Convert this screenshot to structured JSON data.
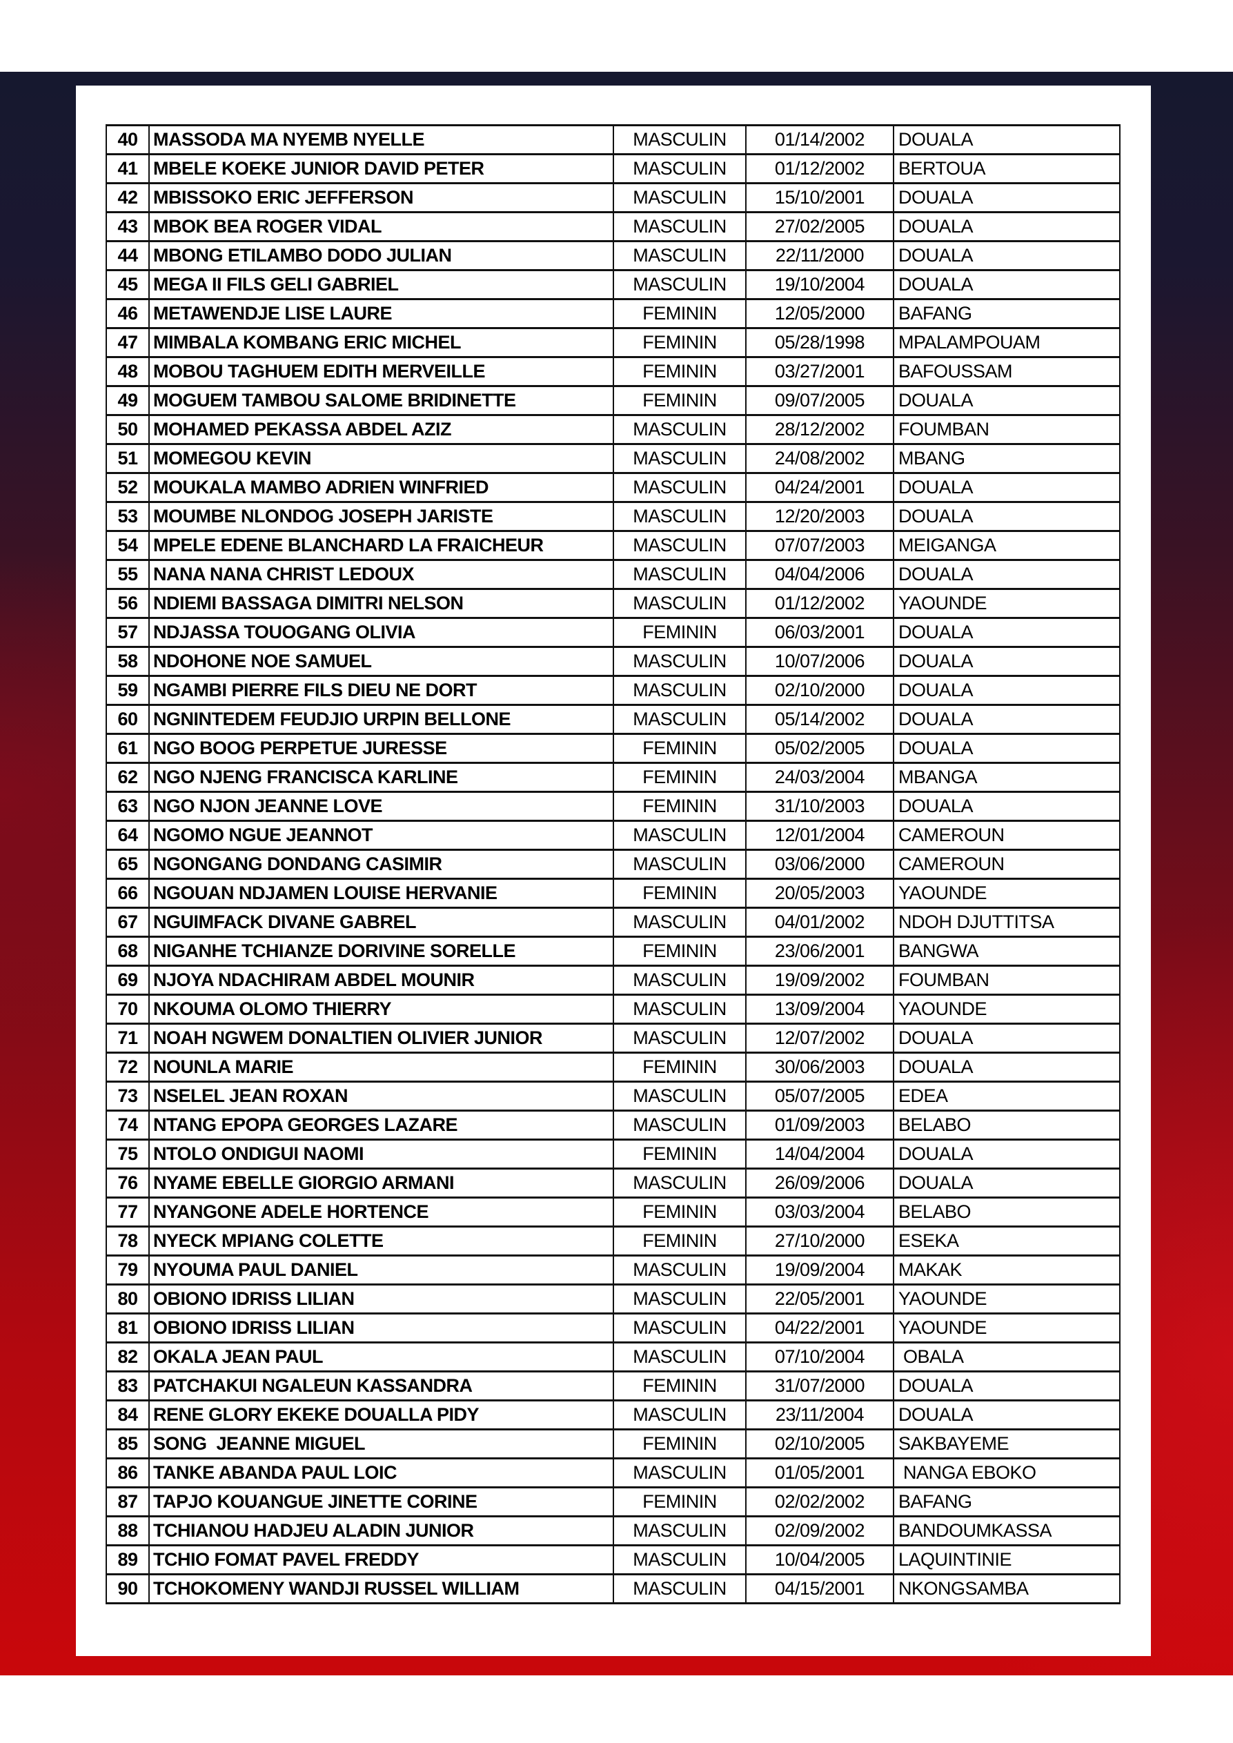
{
  "colors": {
    "background_top": "#16182f",
    "background_bottom": "#c9070b",
    "card": "#ffffff",
    "grid": "#111111"
  },
  "rows": [
    [
      "40",
      "MASSODA MA NYEMB NYELLE",
      "MASCULIN",
      "01/14/2002",
      "DOUALA"
    ],
    [
      "41",
      "MBELE KOEKE JUNIOR DAVID PETER",
      "MASCULIN",
      "01/12/2002",
      "BERTOUA"
    ],
    [
      "42",
      "MBISSOKO ERIC JEFFERSON",
      "MASCULIN",
      "15/10/2001",
      "DOUALA"
    ],
    [
      "43",
      "MBOK BEA ROGER VIDAL",
      "MASCULIN",
      "27/02/2005",
      "DOUALA"
    ],
    [
      "44",
      "MBONG ETILAMBO DODO JULIAN",
      "MASCULIN",
      "22/11/2000",
      "DOUALA"
    ],
    [
      "45",
      "MEGA II FILS GELI GABRIEL",
      "MASCULIN",
      "19/10/2004",
      "DOUALA"
    ],
    [
      "46",
      "METAWENDJE LISE LAURE",
      "FEMININ",
      "12/05/2000",
      "BAFANG"
    ],
    [
      "47",
      "MIMBALA KOMBANG ERIC MICHEL",
      "FEMININ",
      "05/28/1998",
      "MPALAMPOUAM"
    ],
    [
      "48",
      "MOBOU TAGHUEM EDITH MERVEILLE",
      "FEMININ",
      "03/27/2001",
      "BAFOUSSAM"
    ],
    [
      "49",
      "MOGUEM TAMBOU SALOME BRIDINETTE",
      "FEMININ",
      "09/07/2005",
      "DOUALA"
    ],
    [
      "50",
      "MOHAMED PEKASSA ABDEL AZIZ",
      "MASCULIN",
      "28/12/2002",
      "FOUMBAN"
    ],
    [
      "51",
      "MOMEGOU KEVIN",
      "MASCULIN",
      "24/08/2002",
      "MBANG"
    ],
    [
      "52",
      "MOUKALA MAMBO ADRIEN WINFRIED",
      "MASCULIN",
      "04/24/2001",
      "DOUALA"
    ],
    [
      "53",
      "MOUMBE NLONDOG JOSEPH JARISTE",
      "MASCULIN",
      "12/20/2003",
      "DOUALA"
    ],
    [
      "54",
      "MPELE EDENE BLANCHARD LA FRAICHEUR",
      "MASCULIN",
      "07/07/2003",
      "MEIGANGA"
    ],
    [
      "55",
      "NANA NANA CHRIST LEDOUX",
      "MASCULIN",
      "04/04/2006",
      "DOUALA"
    ],
    [
      "56",
      "NDIEMI BASSAGA DIMITRI NELSON",
      "MASCULIN",
      "01/12/2002",
      "YAOUNDE"
    ],
    [
      "57",
      "NDJASSA TOUOGANG OLIVIA",
      "FEMININ",
      "06/03/2001",
      "DOUALA"
    ],
    [
      "58",
      "NDOHONE NOE SAMUEL",
      "MASCULIN",
      "10/07/2006",
      "DOUALA"
    ],
    [
      "59",
      "NGAMBI PIERRE FILS DIEU NE DORT",
      "MASCULIN",
      "02/10/2000",
      "DOUALA"
    ],
    [
      "60",
      "NGNINTEDEM FEUDJIO URPIN BELLONE",
      "MASCULIN",
      "05/14/2002",
      "DOUALA"
    ],
    [
      "61",
      "NGO BOOG PERPETUE JURESSE",
      "FEMININ",
      "05/02/2005",
      "DOUALA"
    ],
    [
      "62",
      "NGO NJENG FRANCISCA KARLINE",
      "FEMININ",
      "24/03/2004",
      "MBANGA"
    ],
    [
      "63",
      "NGO NJON JEANNE LOVE",
      "FEMININ",
      "31/10/2003",
      "DOUALA"
    ],
    [
      "64",
      "NGOMO NGUE JEANNOT",
      "MASCULIN",
      "12/01/2004",
      "CAMEROUN"
    ],
    [
      "65",
      "NGONGANG DONDANG CASIMIR",
      "MASCULIN",
      "03/06/2000",
      "CAMEROUN"
    ],
    [
      "66",
      "NGOUAN NDJAMEN LOUISE HERVANIE",
      "FEMININ",
      "20/05/2003",
      "YAOUNDE"
    ],
    [
      "67",
      "NGUIMFACK DIVANE GABREL",
      "MASCULIN",
      "04/01/2002",
      "NDOH DJUTTITSA"
    ],
    [
      "68",
      "NIGANHE TCHIANZE DORIVINE SORELLE",
      "FEMININ",
      "23/06/2001",
      "BANGWA"
    ],
    [
      "69",
      "NJOYA NDACHIRAM ABDEL MOUNIR",
      "MASCULIN",
      "19/09/2002",
      "FOUMBAN"
    ],
    [
      "70",
      "NKOUMA OLOMO THIERRY",
      "MASCULIN",
      "13/09/2004",
      "YAOUNDE"
    ],
    [
      "71",
      "NOAH NGWEM DONALTIEN OLIVIER JUNIOR",
      "MASCULIN",
      "12/07/2002",
      "DOUALA"
    ],
    [
      "72",
      "NOUNLA MARIE",
      "FEMININ",
      "30/06/2003",
      "DOUALA"
    ],
    [
      "73",
      "NSELEL JEAN ROXAN",
      "MASCULIN",
      "05/07/2005",
      "EDEA"
    ],
    [
      "74",
      "NTANG EPOPA GEORGES LAZARE",
      "MASCULIN",
      "01/09/2003",
      "BELABO"
    ],
    [
      "75",
      "NTOLO ONDIGUI NAOMI",
      "FEMININ",
      "14/04/2004",
      "DOUALA"
    ],
    [
      "76",
      "NYAME EBELLE GIORGIO ARMANI",
      "MASCULIN",
      "26/09/2006",
      "DOUALA"
    ],
    [
      "77",
      "NYANGONE ADELE HORTENCE",
      "FEMININ",
      "03/03/2004",
      "BELABO"
    ],
    [
      "78",
      "NYECK MPIANG COLETTE",
      "FEMININ",
      "27/10/2000",
      "ESEKA"
    ],
    [
      "79",
      "NYOUMA PAUL DANIEL",
      "MASCULIN",
      "19/09/2004",
      "MAKAK"
    ],
    [
      "80",
      "OBIONO IDRISS LILIAN",
      "MASCULIN",
      "22/05/2001",
      "YAOUNDE"
    ],
    [
      "81",
      "OBIONO IDRISS LILIAN",
      "MASCULIN",
      "04/22/2001",
      "YAOUNDE"
    ],
    [
      "82",
      "OKALA JEAN PAUL",
      "MASCULIN",
      "07/10/2004",
      " OBALA"
    ],
    [
      "83",
      "PATCHAKUI NGALEUN KASSANDRA",
      "FEMININ",
      "31/07/2000",
      "DOUALA"
    ],
    [
      "84",
      "RENE GLORY EKEKE DOUALLA PIDY",
      "MASCULIN",
      "23/11/2004",
      "DOUALA"
    ],
    [
      "85",
      "SONG  JEANNE MIGUEL",
      "FEMININ",
      "02/10/2005",
      "SAKBAYEME"
    ],
    [
      "86",
      "TANKE ABANDA PAUL LOIC",
      "MASCULIN",
      "01/05/2001",
      " NANGA EBOKO"
    ],
    [
      "87",
      "TAPJO KOUANGUE JINETTE CORINE",
      "FEMININ",
      "02/02/2002",
      "BAFANG"
    ],
    [
      "88",
      "TCHIANOU HADJEU ALADIN JUNIOR",
      "MASCULIN",
      "02/09/2002",
      "BANDOUMKASSA"
    ],
    [
      "89",
      "TCHIO FOMAT PAVEL FREDDY",
      "MASCULIN",
      "10/04/2005",
      "LAQUINTINIE"
    ],
    [
      "90",
      "TCHOKOMENY WANDJI RUSSEL WILLIAM",
      "MASCULIN",
      "04/15/2001",
      "NKONGSAMBA"
    ]
  ]
}
